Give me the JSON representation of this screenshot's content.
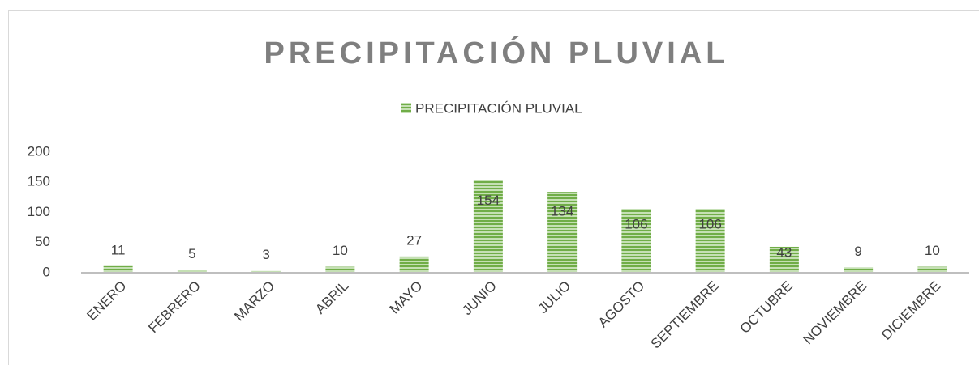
{
  "chart_data": {
    "type": "bar",
    "title": "PRECIPITACIÓN PLUVIAL",
    "legend": "PRECIPITACIÓN PLUVIAL",
    "categories": [
      "ENERO",
      "FEBRERO",
      "MARZO",
      "ABRIL",
      "MAYO",
      "JUNIO",
      "JULIO",
      "AGOSTO",
      "SEPTIEMBRE",
      "OCTUBRE",
      "NOVIEMBRE",
      "DICIEMBRE"
    ],
    "values": [
      11,
      5,
      3,
      10,
      27,
      154,
      134,
      106,
      106,
      43,
      9,
      10
    ],
    "color": "#70ad47",
    "ylim": [
      0,
      200
    ],
    "yticks": [
      0,
      50,
      100,
      150,
      200
    ],
    "grid": false
  }
}
